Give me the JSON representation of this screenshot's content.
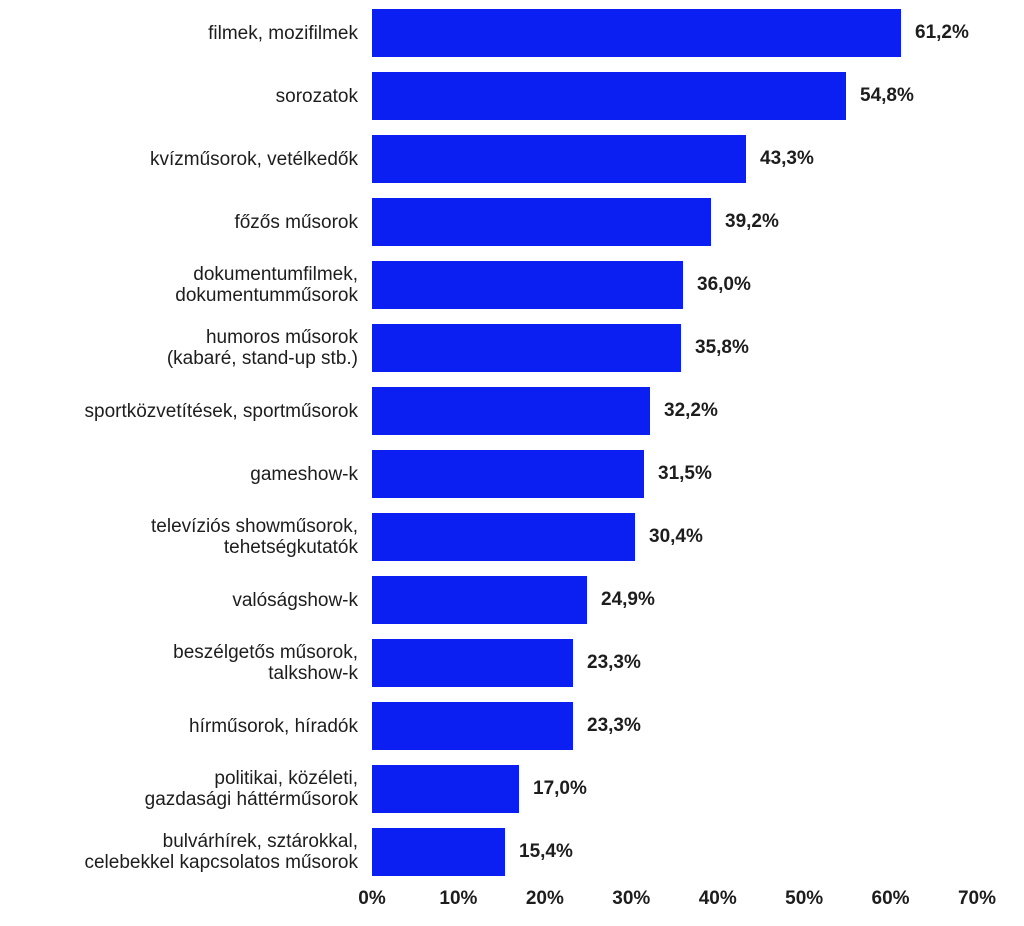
{
  "chart_data": {
    "type": "bar",
    "orientation": "horizontal",
    "categories": [
      "filmek, mozifilmek",
      "sorozatok",
      "kvízműsorok, vetélkedők",
      "főzős műsorok",
      "dokumentumfilmek,\ndokumentumműsorok",
      "humoros műsorok\n(kabaré, stand-up stb.)",
      "sportközvetítések, sportműsorok",
      "gameshow-k",
      "televíziós showműsorok,\ntehetségkutatók",
      "valóságshow-k",
      "beszélgetős műsorok,\ntalkshow-k",
      "hírműsorok, híradók",
      "politikai, közéleti,\ngazdasági háttérműsorok",
      "bulvárhírek, sztárokkal,\ncelebekkel kapcsolatos műsorok"
    ],
    "values": [
      61.2,
      54.8,
      43.3,
      39.2,
      36.0,
      35.8,
      32.2,
      31.5,
      30.4,
      24.9,
      23.3,
      23.3,
      17.0,
      15.4
    ],
    "value_labels": [
      "61,2%",
      "54,8%",
      "43,3%",
      "39,2%",
      "36,0%",
      "35,8%",
      "32,2%",
      "31,5%",
      "30,4%",
      "24,9%",
      "23,3%",
      "23,3%",
      "17,0%",
      "15,4%"
    ],
    "x_ticks": [
      "0%",
      "10%",
      "20%",
      "30%",
      "40%",
      "50%",
      "60%",
      "70%"
    ],
    "xlim": [
      0,
      70
    ],
    "grid": false,
    "legend": false,
    "bar_color": "#0b1ff2",
    "text_color": "#1d1d1d",
    "background_color": "#ffffff"
  }
}
